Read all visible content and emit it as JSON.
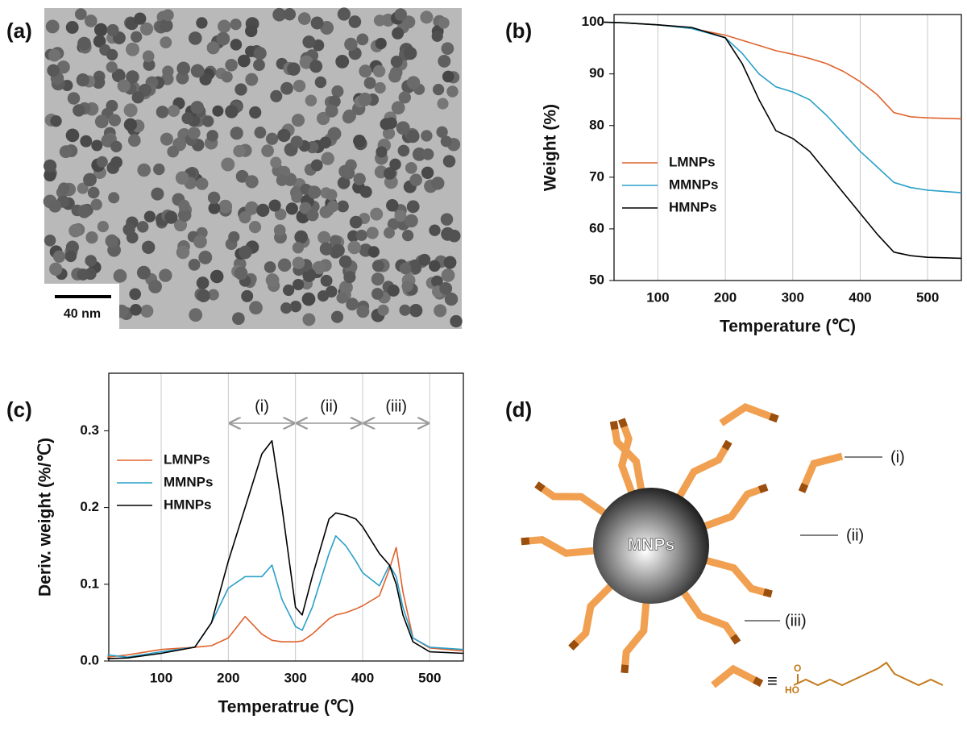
{
  "panels": {
    "a": {
      "label": "(a)",
      "scale_bar": "40 nm"
    },
    "b": {
      "label": "(b)"
    },
    "c": {
      "label": "(c)"
    },
    "d": {
      "label": "(d)",
      "core": "MNPs",
      "ligand_labels": [
        "(i)",
        "(ii)",
        "(iii)"
      ],
      "equiv": "≡",
      "hydroxyl": "HO",
      "oxygen": "O"
    }
  },
  "chart_data": [
    {
      "type": "line",
      "xlabel": "Temperature (℃)",
      "ylabel": "Weight (%)",
      "x": [
        20,
        50,
        100,
        150,
        200,
        225,
        250,
        275,
        300,
        325,
        350,
        375,
        400,
        425,
        450,
        475,
        500,
        550
      ],
      "series": [
        {
          "name": "LMNPs",
          "color": "#e0622d",
          "values": [
            100,
            99.9,
            99.5,
            98.8,
            97.5,
            96.5,
            95.5,
            94.5,
            93.8,
            93,
            92,
            90.5,
            88.5,
            86,
            82.5,
            81.7,
            81.5,
            81.3
          ]
        },
        {
          "name": "MMNPs",
          "color": "#2aa0c8",
          "values": [
            100,
            99.9,
            99.5,
            98.8,
            97,
            94,
            90,
            87.5,
            86.5,
            85,
            82,
            78.5,
            75,
            72,
            69,
            68,
            67.5,
            67
          ]
        },
        {
          "name": "HMNPs",
          "color": "#000000",
          "values": [
            100,
            99.9,
            99.5,
            99,
            97,
            92,
            85,
            79,
            77.5,
            75,
            71,
            67,
            63,
            59,
            55.5,
            54.8,
            54.5,
            54.3
          ]
        }
      ],
      "xlim": [
        35,
        550
      ],
      "xticks": [
        100,
        200,
        300,
        400,
        500
      ],
      "ylim": [
        50,
        101.5
      ],
      "yticks": [
        50,
        60,
        70,
        80,
        90,
        100
      ],
      "grid": true,
      "legend": "lower left"
    },
    {
      "type": "line",
      "xlabel": "Temperatrue (℃)",
      "ylabel": "Deriv. weight (%/℃)",
      "x": [
        20,
        50,
        100,
        150,
        175,
        200,
        225,
        250,
        265,
        280,
        300,
        310,
        325,
        350,
        360,
        375,
        390,
        400,
        425,
        440,
        450,
        460,
        475,
        500,
        550
      ],
      "series": [
        {
          "name": "LMNPs",
          "color": "#e0622d",
          "values": [
            0.005,
            0.008,
            0.015,
            0.018,
            0.02,
            0.03,
            0.058,
            0.035,
            0.027,
            0.025,
            0.025,
            0.026,
            0.035,
            0.055,
            0.06,
            0.063,
            0.068,
            0.072,
            0.085,
            0.12,
            0.148,
            0.09,
            0.03,
            0.017,
            0.013
          ]
        },
        {
          "name": "MMNPs",
          "color": "#2aa0c8",
          "values": [
            0.008,
            0.005,
            0.012,
            0.018,
            0.05,
            0.095,
            0.11,
            0.11,
            0.125,
            0.08,
            0.045,
            0.04,
            0.07,
            0.14,
            0.163,
            0.15,
            0.13,
            0.115,
            0.098,
            0.125,
            0.11,
            0.07,
            0.03,
            0.018,
            0.015
          ]
        },
        {
          "name": "HMNPs",
          "color": "#000000",
          "values": [
            0.003,
            0.004,
            0.01,
            0.018,
            0.05,
            0.13,
            0.2,
            0.27,
            0.287,
            0.2,
            0.07,
            0.06,
            0.11,
            0.185,
            0.193,
            0.19,
            0.185,
            0.175,
            0.14,
            0.125,
            0.1,
            0.06,
            0.025,
            0.012,
            0.01
          ]
        }
      ],
      "xlim": [
        22,
        550
      ],
      "xticks": [
        100,
        200,
        300,
        400,
        500
      ],
      "ylim": [
        0,
        0.375
      ],
      "yticks": [
        {
          "value": 0,
          "label": "0.0"
        },
        0.1,
        0.2,
        0.3
      ],
      "grid": true,
      "legend": "upper left",
      "regions": [
        {
          "label": "(i)",
          "range": [
            200,
            300
          ]
        },
        {
          "label": "(ii)",
          "range": [
            300,
            400
          ]
        },
        {
          "label": "(iii)",
          "range": [
            400,
            500
          ]
        }
      ]
    }
  ]
}
